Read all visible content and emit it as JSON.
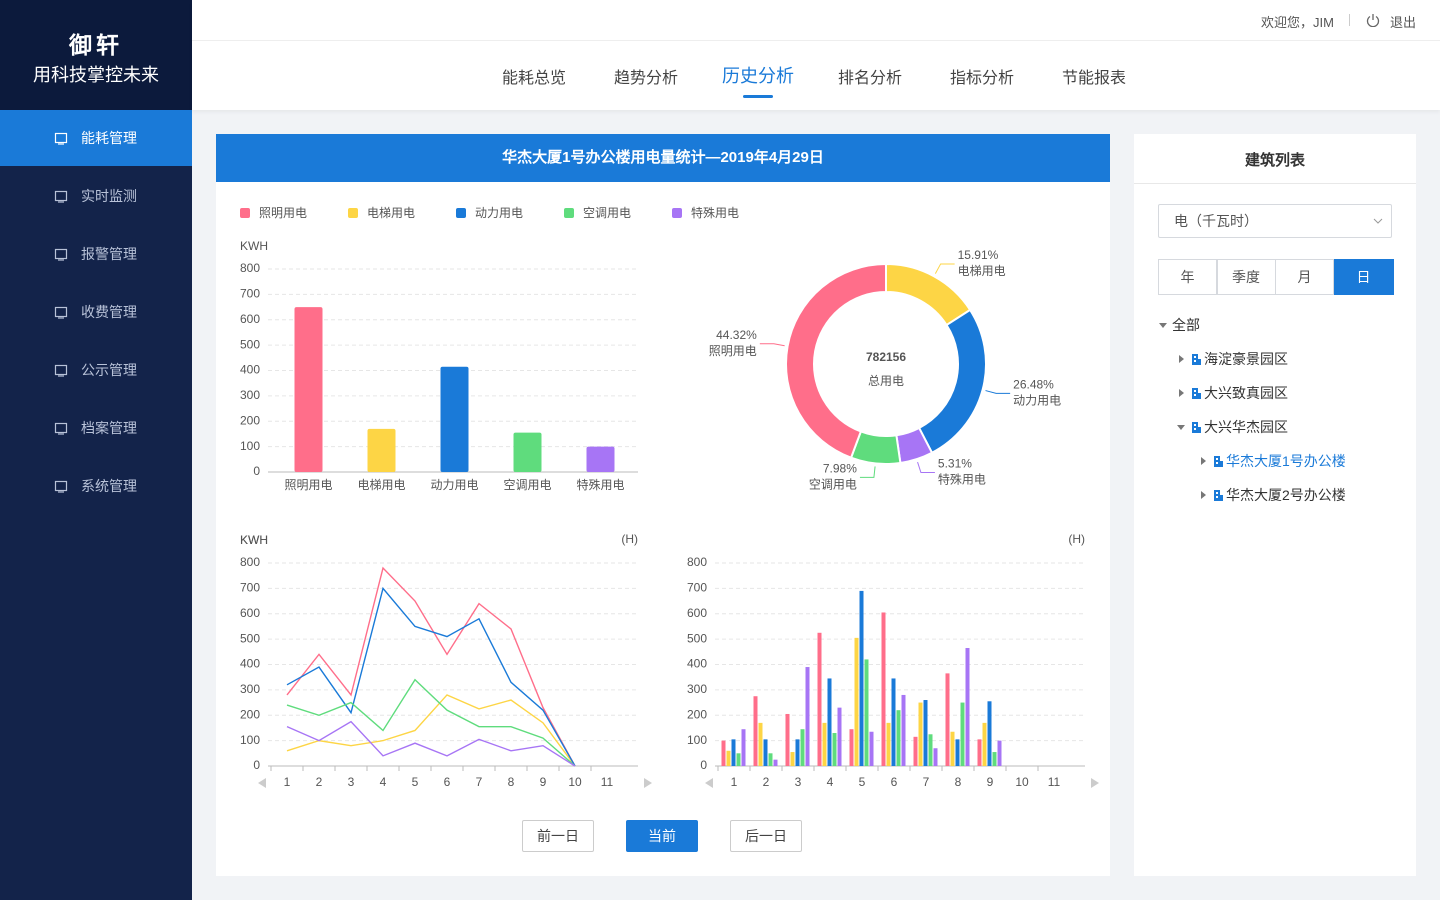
{
  "sidebar": {
    "logo": "御轩",
    "slogan": "用科技掌控未来",
    "menu": [
      "能耗管理",
      "实时监测",
      "报警管理",
      "收费管理",
      "公示管理",
      "档案管理",
      "系统管理"
    ]
  },
  "header": {
    "welcome": "欢迎您，JIM",
    "logout": "退出"
  },
  "nav": {
    "items": [
      "能耗总览",
      "趋势分析",
      "历史分析",
      "排名分析",
      "指标分析",
      "节能报表"
    ]
  },
  "panel": {
    "title": "华杰大厦1号办公楼用电量统计—2019年4月29日"
  },
  "buttons": {
    "prev": "前一日",
    "current": "当前",
    "next": "后一日"
  },
  "right": {
    "title": "建筑列表",
    "select": "电（千瓦时）",
    "segments": [
      "年",
      "季度",
      "月",
      "日"
    ],
    "tree": [
      "全部",
      "海淀豪景园区",
      "大兴致真园区",
      "大兴华杰园区",
      "华杰大厦1号办公楼",
      "华杰大厦2号办公楼"
    ]
  },
  "chart_data": [
    {
      "type": "bar",
      "y_label": "KWH",
      "categories": [
        "照明用电",
        "电梯用电",
        "动力用电",
        "空调用电",
        "特殊用电"
      ],
      "values": [
        650,
        170,
        415,
        155,
        100
      ],
      "colors": [
        "#ff6e8a",
        "#fdd545",
        "#1a7ad8",
        "#5fdc7d",
        "#a775f5"
      ],
      "ylim": [
        0,
        800
      ],
      "yticks": [
        0,
        100,
        200,
        300,
        400,
        500,
        600,
        700,
        800
      ],
      "grid": true
    },
    {
      "type": "pie",
      "donut": true,
      "total": 782156,
      "total_label": "总用电",
      "categories": [
        "电梯用电",
        "动力用电",
        "特殊用电",
        "空调用电",
        "照明用电"
      ],
      "values": [
        15.91,
        26.48,
        5.31,
        7.98,
        44.32
      ],
      "value_labels": [
        "15.91%",
        "26.48%",
        "5.31%",
        "7.98%",
        "44.32%"
      ],
      "colors": [
        "#fdd545",
        "#1a7ad8",
        "#a775f5",
        "#5fdc7d",
        "#ff6e8a"
      ]
    },
    {
      "type": "line",
      "y_label": "KWH",
      "x_label": "(H)",
      "categories": [
        "1",
        "2",
        "3",
        "4",
        "5",
        "6",
        "7",
        "8",
        "9",
        "10",
        "11"
      ],
      "ylim": [
        0,
        800
      ],
      "yticks": [
        0,
        100,
        200,
        300,
        400,
        500,
        600,
        700,
        800
      ],
      "grid": true,
      "series": [
        {
          "name": "照明用电",
          "color": "#ff6e8a",
          "values": [
            280,
            440,
            280,
            780,
            650,
            440,
            640,
            540,
            230,
            0,
            null
          ]
        },
        {
          "name": "电梯用电",
          "color": "#fdd545",
          "values": [
            60,
            100,
            80,
            100,
            140,
            280,
            225,
            260,
            170,
            0,
            null
          ]
        },
        {
          "name": "动力用电",
          "color": "#1a7ad8",
          "values": [
            320,
            390,
            210,
            700,
            550,
            510,
            580,
            330,
            220,
            0,
            null
          ]
        },
        {
          "name": "空调用电",
          "color": "#5fdc7d",
          "values": [
            240,
            200,
            250,
            140,
            340,
            220,
            155,
            155,
            110,
            0,
            null
          ]
        },
        {
          "name": "特殊用电",
          "color": "#a775f5",
          "values": [
            155,
            100,
            175,
            40,
            90,
            40,
            105,
            60,
            80,
            0,
            null
          ]
        }
      ]
    },
    {
      "type": "bar",
      "y_label": "KWH",
      "x_label": "(H)",
      "categories": [
        "1",
        "2",
        "3",
        "4",
        "5",
        "6",
        "7",
        "8",
        "9",
        "10",
        "11"
      ],
      "ylim": [
        0,
        800
      ],
      "yticks": [
        0,
        100,
        200,
        300,
        400,
        500,
        600,
        700,
        800
      ],
      "grid": true,
      "series": [
        {
          "name": "照明用电",
          "color": "#ff6e8a",
          "values": [
            100,
            275,
            205,
            525,
            145,
            605,
            115,
            365,
            105,
            null,
            null
          ]
        },
        {
          "name": "电梯用电",
          "color": "#fdd545",
          "values": [
            60,
            170,
            55,
            170,
            505,
            170,
            250,
            135,
            170,
            null,
            null
          ]
        },
        {
          "name": "动力用电",
          "color": "#1a7ad8",
          "values": [
            105,
            105,
            105,
            345,
            690,
            345,
            260,
            105,
            255,
            null,
            null
          ]
        },
        {
          "name": "空调用电",
          "color": "#5fdc7d",
          "values": [
            50,
            50,
            145,
            130,
            420,
            220,
            125,
            250,
            55,
            null,
            null
          ]
        },
        {
          "name": "特殊用电",
          "color": "#a775f5",
          "values": [
            145,
            25,
            390,
            230,
            135,
            280,
            70,
            465,
            100,
            null,
            null
          ]
        }
      ]
    }
  ]
}
